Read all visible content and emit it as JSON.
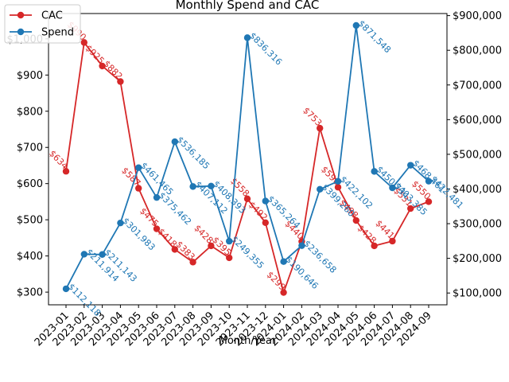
{
  "chart_data": {
    "type": "line",
    "title": "Monthly Spend and CAC",
    "xlabel": "Month/Year",
    "ylabel": "",
    "categories": [
      "2023-01",
      "2023-02",
      "2023-03",
      "2023-04",
      "2023-05",
      "2023-06",
      "2023-07",
      "2023-08",
      "2023-09",
      "2023-10",
      "2023-11",
      "2023-12",
      "2024-01",
      "2024-02",
      "2024-03",
      "2024-04",
      "2024-05",
      "2024-06",
      "2024-07",
      "2024-08",
      "2024-09"
    ],
    "left_axis": {
      "ylim": [
        265,
        1070
      ],
      "ticks": [
        300,
        400,
        500,
        600,
        700,
        800,
        900,
        1000
      ],
      "tick_labels": [
        "$300",
        "$400",
        "$500",
        "$600",
        "$700",
        "$800",
        "$900",
        "$1,000"
      ]
    },
    "right_axis": {
      "ylim": [
        66000,
        906000
      ],
      "ticks": [
        100000,
        200000,
        300000,
        400000,
        500000,
        600000,
        700000,
        800000,
        900000
      ],
      "tick_labels": [
        "$100,000",
        "$200,000",
        "$300,000",
        "$400,000",
        "$500,000",
        "$600,000",
        "$700,000",
        "$800,000",
        "$900,000"
      ]
    },
    "grid": false,
    "legend_position": "top-left",
    "series": [
      {
        "name": "CAC",
        "axis": "left",
        "color": "#d62728",
        "values": [
          634,
          990,
          925,
          882,
          587,
          475,
          418,
          383,
          428,
          395,
          558,
          492,
          299,
          440,
          753,
          590,
          498,
          428,
          441,
          531,
          550
        ],
        "labels": [
          "$634",
          "$990",
          "$925",
          "$882",
          "$587",
          "$475",
          "$418",
          "$383",
          "$428",
          "$395",
          "$558",
          "$492",
          "$299",
          "$440",
          "$753",
          "$590",
          "$498",
          "$428",
          "$441",
          "$531",
          "$550"
        ]
      },
      {
        "name": "Spend",
        "axis": "right",
        "color": "#1f77b4",
        "values": [
          112118,
          211914,
          211143,
          301983,
          461465,
          375462,
          536185,
          407112,
          408393,
          249355,
          836316,
          365264,
          190646,
          236658,
          399260,
          422102,
          871548,
          450734,
          403385,
          468461,
          422481
        ],
        "labels": [
          "$112,118",
          "$211,914",
          "$211,143",
          "$301,983",
          "$461,465",
          "$375,462",
          "$536,185",
          "$407,112",
          "$408,393",
          "$249,355",
          "$836,316",
          "$365,264",
          "$190,646",
          "$236,658",
          "$399,260",
          "$422,102",
          "$871,548",
          "$450,734",
          "$403,385",
          "$468,461",
          "$422,481"
        ]
      }
    ]
  }
}
